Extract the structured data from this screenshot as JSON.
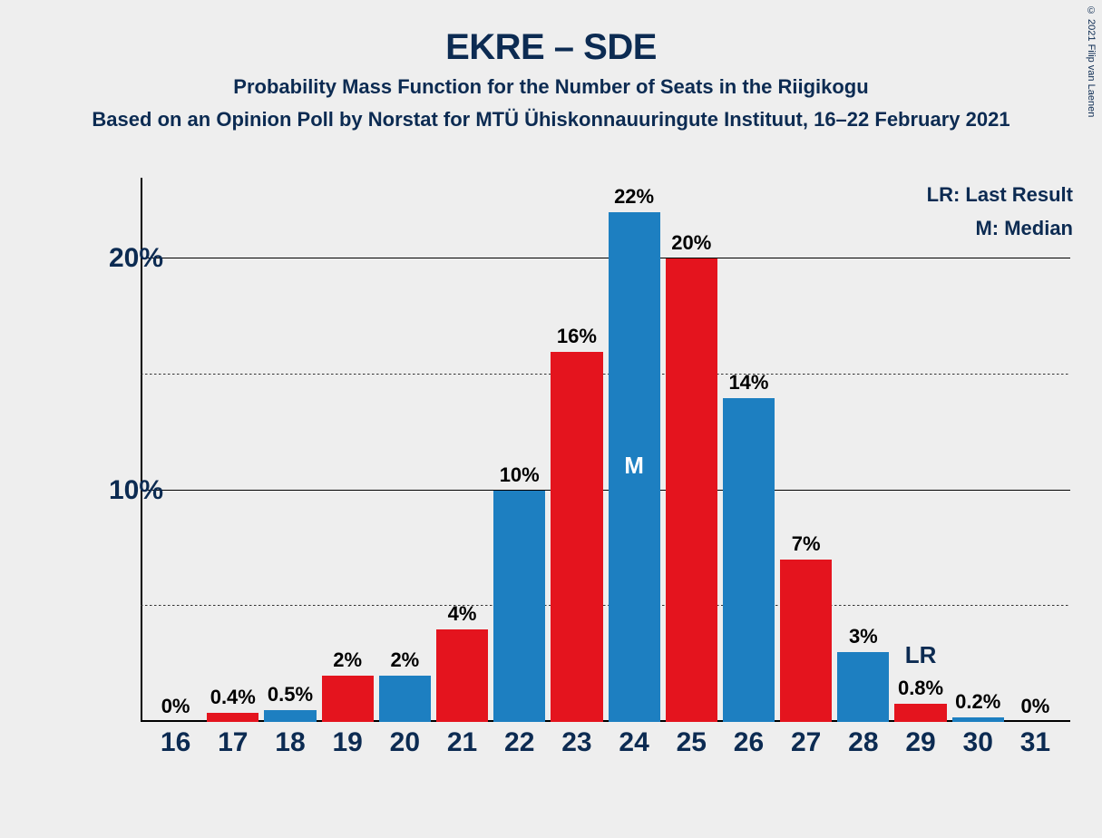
{
  "chart": {
    "type": "bar",
    "title": "EKRE – SDE",
    "subtitle": "Probability Mass Function for the Number of Seats in the Riigikogu",
    "infoline": "Based on an Opinion Poll by Norstat for MTÜ Ühiskonnauuringute Instituut, 16–22 February 2021",
    "copyright": "© 2021 Filip van Laenen",
    "legend": {
      "lr": "LR: Last Result",
      "m": "M: Median"
    },
    "background_color": "#eeeeee",
    "text_color": "#0c2b52",
    "colors": {
      "blue": "#1d7fc1",
      "red": "#e4141e"
    },
    "y_axis": {
      "min": 0,
      "max": 23.5,
      "major_ticks": [
        10,
        20
      ],
      "minor_ticks": [
        5,
        15
      ],
      "tick_label_fontsize": 30,
      "axis_color": "#000000",
      "grid_solid_color": "#000000",
      "grid_dotted_color": "#333333"
    },
    "x_axis": {
      "categories": [
        "16",
        "17",
        "18",
        "19",
        "20",
        "21",
        "22",
        "23",
        "24",
        "25",
        "26",
        "27",
        "28",
        "29",
        "30",
        "31"
      ],
      "tick_label_fontsize": 30
    },
    "bar_width_ratio": 0.9,
    "bars": [
      {
        "x": "16",
        "value": 0,
        "label": "0%",
        "color": "blue"
      },
      {
        "x": "17",
        "value": 0.4,
        "label": "0.4%",
        "color": "red"
      },
      {
        "x": "18",
        "value": 0.5,
        "label": "0.5%",
        "color": "blue"
      },
      {
        "x": "19",
        "value": 2,
        "label": "2%",
        "color": "red"
      },
      {
        "x": "20",
        "value": 2,
        "label": "2%",
        "color": "blue"
      },
      {
        "x": "21",
        "value": 4,
        "label": "4%",
        "color": "red"
      },
      {
        "x": "22",
        "value": 10,
        "label": "10%",
        "color": "blue"
      },
      {
        "x": "23",
        "value": 16,
        "label": "16%",
        "color": "red"
      },
      {
        "x": "24",
        "value": 22,
        "label": "22%",
        "color": "blue",
        "marker": "M"
      },
      {
        "x": "25",
        "value": 20,
        "label": "20%",
        "color": "red"
      },
      {
        "x": "26",
        "value": 14,
        "label": "14%",
        "color": "blue"
      },
      {
        "x": "27",
        "value": 7,
        "label": "7%",
        "color": "red"
      },
      {
        "x": "28",
        "value": 3,
        "label": "3%",
        "color": "blue"
      },
      {
        "x": "29",
        "value": 0.8,
        "label": "0.8%",
        "color": "red",
        "lr": "LR"
      },
      {
        "x": "30",
        "value": 0.2,
        "label": "0.2%",
        "color": "blue"
      },
      {
        "x": "31",
        "value": 0,
        "label": "0%",
        "color": "red"
      }
    ]
  }
}
